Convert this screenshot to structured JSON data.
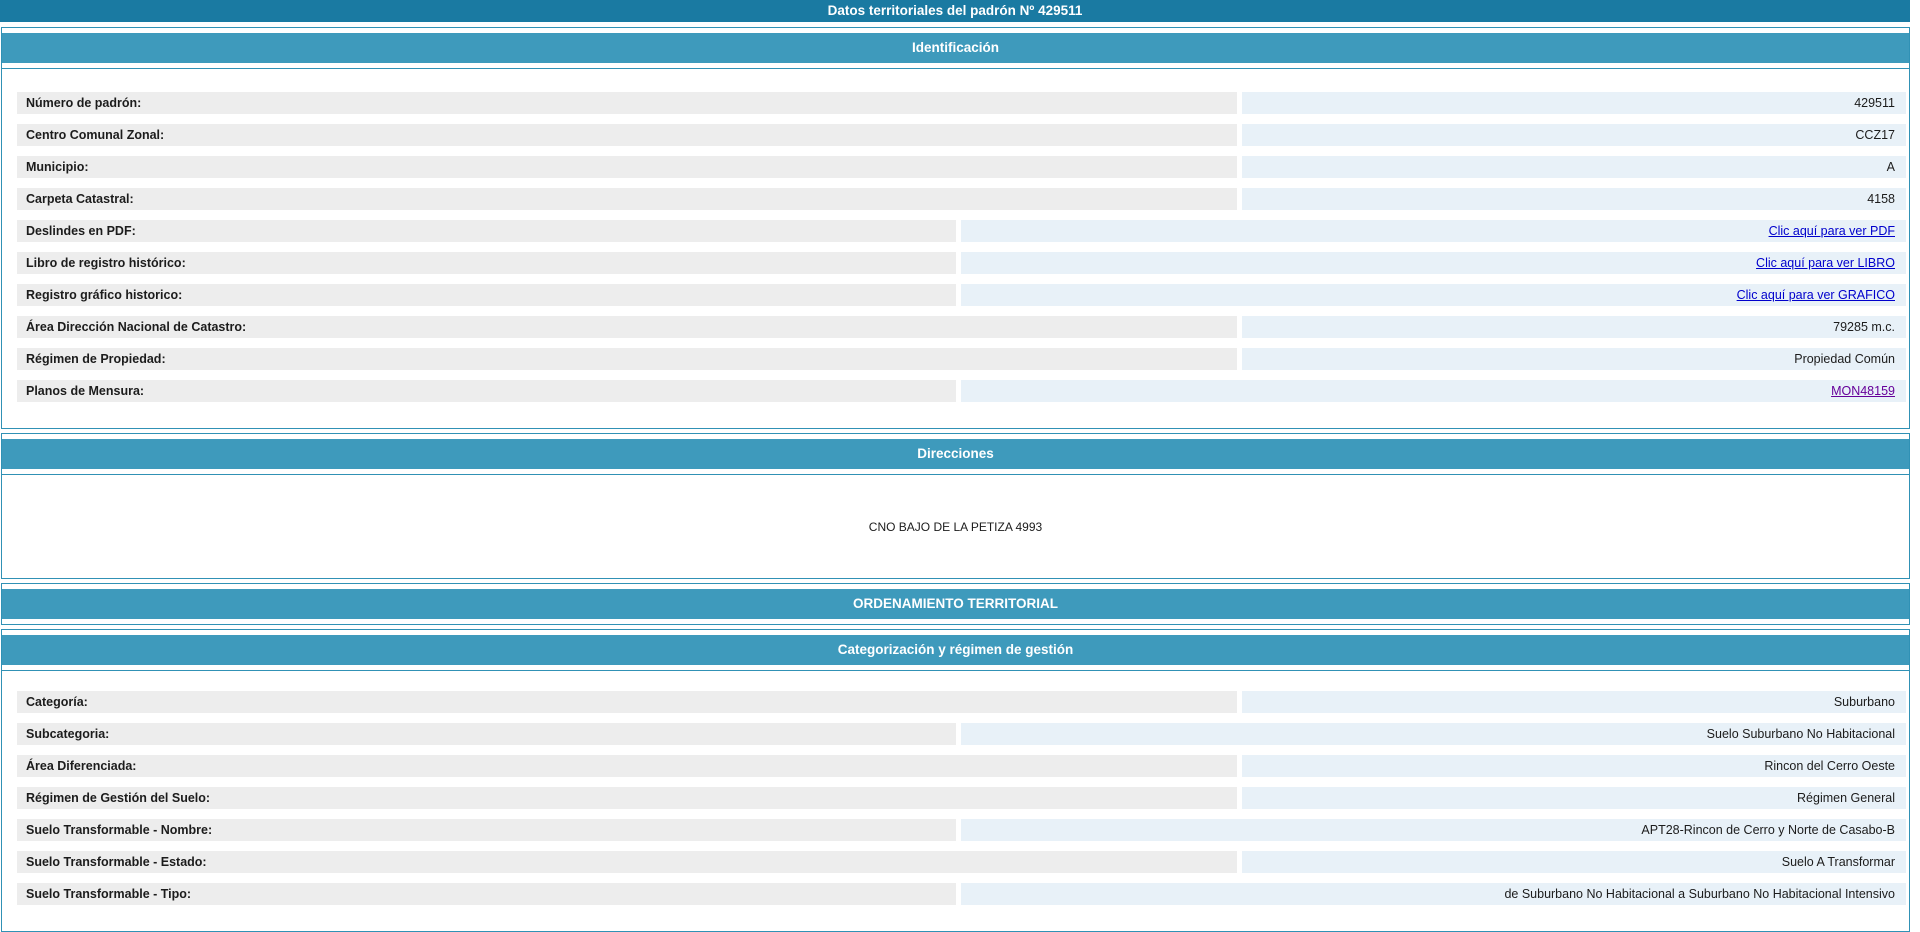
{
  "page": {
    "title": "Datos territoriales del padrón Nº 429511"
  },
  "colors": {
    "title_bar_bg": "#1a7aa2",
    "section_header_bg": "#3e9abc",
    "section_border": "#3091b5",
    "label_bg": "#ededed",
    "value_bg": "#e8f1f8",
    "link": "#0000cc",
    "link_visited": "#660099",
    "text": "#1c1c1c"
  },
  "identificacion": {
    "header": "Identificación",
    "rows": [
      {
        "label": "Número de padrón:",
        "value": "429511"
      },
      {
        "label": "Centro Comunal Zonal:",
        "value": "CCZ17"
      },
      {
        "label": "Municipio:",
        "value": "A"
      },
      {
        "label": "Carpeta Catastral:",
        "value": "4158"
      },
      {
        "label": "Deslindes en PDF:",
        "value": "Clic aquí para ver PDF"
      },
      {
        "label": "Libro de registro histórico:",
        "value": "Clic aquí para ver LIBRO"
      },
      {
        "label": "Registro gráfico historico:",
        "value": "Clic aquí para ver GRAFICO"
      },
      {
        "label": "Área Dirección Nacional de Catastro:",
        "value": "79285 m.c."
      },
      {
        "label": "Régimen de Propiedad:",
        "value": "Propiedad Común"
      },
      {
        "label": "Planos de Mensura:",
        "value": "MON48159"
      }
    ]
  },
  "direcciones": {
    "header": "Direcciones",
    "address": "CNO BAJO DE LA PETIZA 4993"
  },
  "ordenamiento": {
    "header": "ORDENAMIENTO TERRITORIAL"
  },
  "categorizacion": {
    "header": "Categorización y régimen de gestión",
    "rows": [
      {
        "label": "Categoría:",
        "value": "Suburbano"
      },
      {
        "label": "Subcategoria:",
        "value": "Suelo Suburbano No Habitacional"
      },
      {
        "label": "Área Diferenciada:",
        "value": "Rincon del Cerro Oeste"
      },
      {
        "label": "Régimen de Gestión del Suelo:",
        "value": "Régimen General"
      },
      {
        "label": "Suelo Transformable - Nombre:",
        "value": "APT28-Rincon de Cerro y Norte de Casabo-B"
      },
      {
        "label": "Suelo Transformable - Estado:",
        "value": "Suelo A Transformar"
      },
      {
        "label": "Suelo Transformable - Tipo:",
        "value": "de Suburbano No Habitacional a Suburbano No Habitacional Intensivo"
      }
    ]
  }
}
